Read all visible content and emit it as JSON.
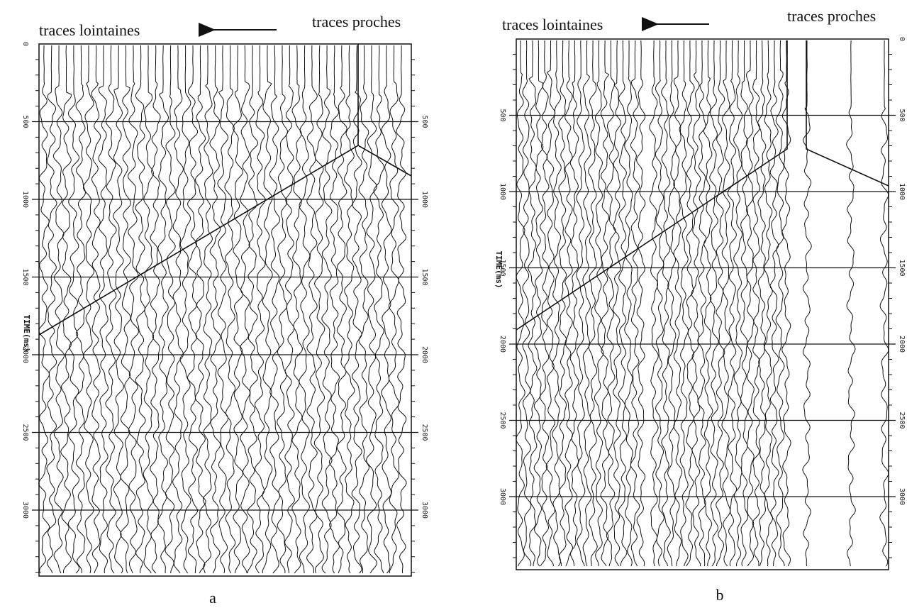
{
  "panels": [
    {
      "label": "a",
      "far_label": "traces lointaines",
      "near_label": "traces proches",
      "axis_label": "TIME(ms)",
      "left_ticks": [
        "0",
        "500",
        "1000",
        "1500",
        "2000",
        "2500",
        "3000"
      ],
      "right_ticks": [
        "500",
        "1000",
        "1500",
        "2000",
        "2500",
        "3000"
      ]
    },
    {
      "label": "b",
      "far_label": "traces lointaines",
      "near_label": "traces proches",
      "axis_label": "TIME(ms)",
      "left_ticks": [
        "500",
        "1000",
        "1500",
        "2000",
        "2500",
        "3000"
      ],
      "right_ticks": [
        "0",
        "500",
        "1000",
        "1500",
        "2000",
        "2500",
        "3000"
      ]
    }
  ]
}
